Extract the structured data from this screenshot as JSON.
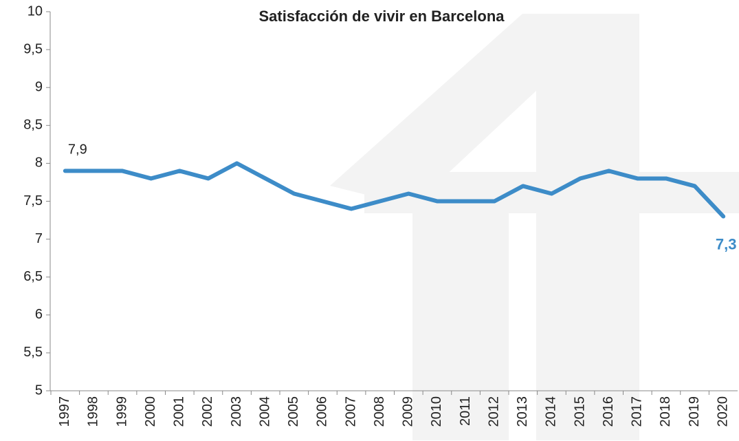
{
  "chart_data": {
    "type": "line",
    "title": "Satisfacción de vivir en Barcelona",
    "categories": [
      "1997",
      "1998",
      "1999",
      "2000",
      "2001",
      "2002",
      "2003",
      "2004",
      "2005",
      "2006",
      "2007",
      "2008",
      "2009",
      "2010",
      "2011",
      "2012",
      "2013",
      "2014",
      "2015",
      "2016",
      "2017",
      "2018",
      "2019",
      "2020"
    ],
    "values": [
      7.9,
      7.9,
      7.9,
      7.8,
      7.9,
      7.8,
      8.0,
      7.8,
      7.6,
      7.5,
      7.4,
      7.5,
      7.6,
      7.5,
      7.5,
      7.5,
      7.7,
      7.6,
      7.8,
      7.9,
      7.8,
      7.8,
      7.7,
      7.3
    ],
    "value_labels": [
      "7,9",
      null,
      null,
      null,
      null,
      null,
      null,
      null,
      null,
      null,
      null,
      null,
      null,
      null,
      null,
      null,
      null,
      null,
      null,
      null,
      null,
      null,
      null,
      "7,3"
    ],
    "color": "#3d8cc8",
    "ylim": [
      5,
      10
    ],
    "yticks": [
      5,
      {
        "value": 5.5,
        "label": "5,5"
      },
      6,
      {
        "value": 6.5,
        "label": "6,5"
      },
      7,
      {
        "value": 7.5,
        "label": "7,5"
      },
      8,
      {
        "value": 8.5,
        "label": "8,5"
      },
      9,
      {
        "value": 9.5,
        "label": "9,5"
      },
      10
    ]
  }
}
